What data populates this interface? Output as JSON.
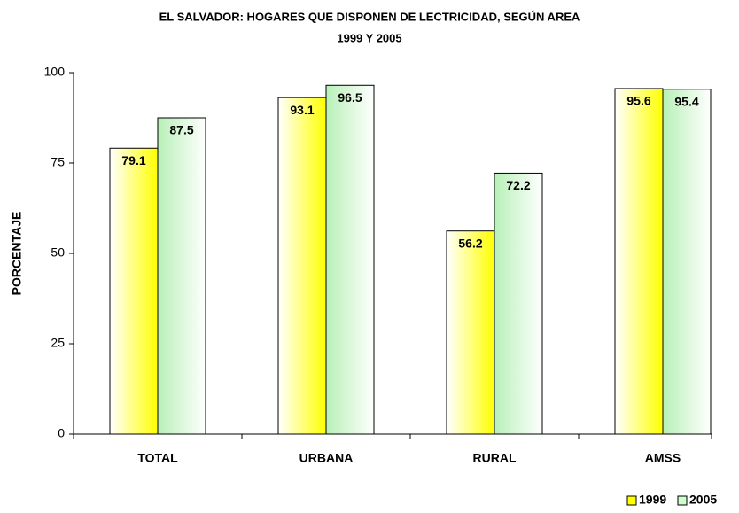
{
  "chart_data": {
    "type": "bar",
    "title": "EL SALVADOR: HOGARES QUE DISPONEN DE LECTRICIDAD, SEGÚN AREA",
    "subtitle": "1999 Y 2005",
    "y_label": "PORCENTAJE",
    "categories": [
      "TOTAL",
      "URBANA",
      "RURAL",
      "AMSS"
    ],
    "series": [
      {
        "name": "1999",
        "color": "#ffff00",
        "values": [
          79.1,
          93.1,
          56.2,
          95.6
        ]
      },
      {
        "name": "2005",
        "color": "#ccffcc",
        "values": [
          87.5,
          96.5,
          72.2,
          95.4
        ]
      }
    ],
    "ylim": [
      0,
      100
    ],
    "yticks": [
      0,
      25,
      50,
      75,
      100
    ],
    "grid": false,
    "legend": "bottom-right"
  }
}
